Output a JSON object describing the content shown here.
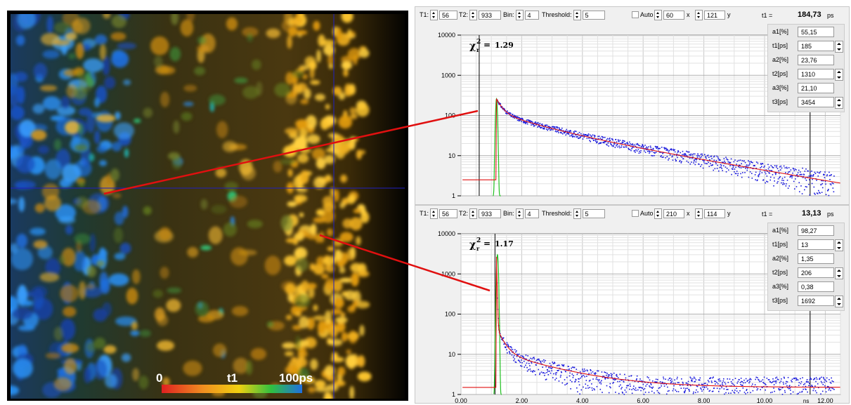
{
  "image": {
    "legend_min": "0",
    "legend_mid": "t1",
    "legend_max": "100ps",
    "legend_colors": [
      "#e02020",
      "#f09020",
      "#f0d010",
      "#30c040",
      "#2070e0"
    ],
    "crosshair_color": "#2020c0",
    "line_color": "#e01010"
  },
  "panels": [
    {
      "controls": {
        "t1_lbl": "T1:",
        "t1": "56",
        "t2_lbl": "T2:",
        "t2": "933",
        "bin_lbl": "Bin:",
        "bin": "4",
        "thr_lbl": "Threshold:",
        "thr": "5",
        "auto_lbl": "Auto",
        "x": "60",
        "x_lbl": "x",
        "y": "121",
        "y_lbl": "y"
      },
      "readout": {
        "label": "t1 =",
        "value": "184,73",
        "unit": "ps"
      },
      "chi_label": "χ",
      "chi_sup": "2",
      "chi_sub": "r",
      "chi_eq": "=",
      "chi_value": "1.29",
      "params": [
        {
          "name": "a1[%]",
          "value": "55,15",
          "spin": false
        },
        {
          "name": "t1[ps]",
          "value": "185",
          "spin": true
        },
        {
          "name": "a2[%]",
          "value": "23,76",
          "spin": false
        },
        {
          "name": "t2[ps]",
          "value": "1310",
          "spin": true
        },
        {
          "name": "a3[%]",
          "value": "21,10",
          "spin": false
        },
        {
          "name": "t3[ps]",
          "value": "3454",
          "spin": true
        }
      ]
    },
    {
      "controls": {
        "t1_lbl": "T1:",
        "t1": "56",
        "t2_lbl": "T2:",
        "t2": "933",
        "bin_lbl": "Bin:",
        "bin": "4",
        "thr_lbl": "Threshold:",
        "thr": "5",
        "auto_lbl": "Auto",
        "x": "210",
        "x_lbl": "x",
        "y": "114",
        "y_lbl": "y"
      },
      "readout": {
        "label": "t1 =",
        "value": "13,13",
        "unit": "ps"
      },
      "chi_label": "χ",
      "chi_sup": "2",
      "chi_sub": "r",
      "chi_eq": "=",
      "chi_value": "1.17",
      "params": [
        {
          "name": "a1[%]",
          "value": "98,27",
          "spin": false
        },
        {
          "name": "t1[ps]",
          "value": "13",
          "spin": true
        },
        {
          "name": "a2[%]",
          "value": "1,35",
          "spin": false
        },
        {
          "name": "t2[ps]",
          "value": "206",
          "spin": true
        },
        {
          "name": "a3[%]",
          "value": "0,38",
          "spin": false
        },
        {
          "name": "t3[ps]",
          "value": "1692",
          "spin": true
        }
      ]
    }
  ],
  "chart_data": [
    {
      "type": "scatter",
      "yscale": "log",
      "ylim": [
        1,
        10000
      ],
      "xlim": [
        0,
        12.5
      ],
      "yticks": [
        "10000",
        "1000",
        "100",
        "10",
        "1"
      ],
      "xticks": [],
      "grid": true,
      "series": [],
      "fit": {
        "a1": 55.15,
        "t1": 0.185,
        "a2": 23.76,
        "t2": 1.31,
        "a3": 21.1,
        "t3": 3.454,
        "peak_x": 1.17,
        "peak_y": 260,
        "bg": 0
      },
      "irf": {
        "x": 1.17,
        "peak": 260
      },
      "baseline": 2.5,
      "t1_marker": 0.6,
      "t2_marker": 11.5
    },
    {
      "type": "scatter",
      "yscale": "log",
      "ylim": [
        1,
        10000
      ],
      "xlim": [
        0,
        12.5
      ],
      "yticks": [
        "10000",
        "1000",
        "100",
        "10",
        "1"
      ],
      "xticks": [
        "0,00",
        "2,00",
        "4,00",
        "6,00",
        "8,00",
        "10,00",
        "12,00"
      ],
      "x_unit": "ns",
      "grid": true,
      "series": [],
      "fit": {
        "a1": 98.27,
        "t1": 0.01313,
        "a2": 1.35,
        "t2": 0.206,
        "a3": 0.38,
        "t3": 1.692,
        "peak_x": 1.17,
        "peak_y": 2600,
        "bg": 1.5
      },
      "irf": {
        "x": 1.2,
        "peak": 3000
      },
      "baseline": 1.5,
      "t1_marker": 1.12,
      "t2_marker": 11.5
    }
  ]
}
